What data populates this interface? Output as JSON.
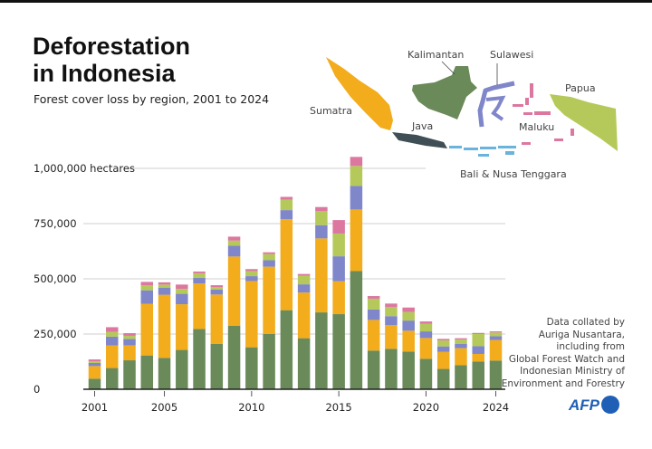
{
  "title_line1": "Deforestation",
  "title_line2": "in Indonesia",
  "subtitle": "Forest cover loss by region, 2001 to 2024",
  "source": "Data collated by\nAuriga Nusantara,\nincluding from\nGlobal Forest Watch and\nIndonesian Ministry of\nEnvironment  and Forestry",
  "logo": "AFP",
  "map_labels": {
    "kalimantan": "Kalimantan",
    "sulawesi": "Sulawesi",
    "papua": "Papua",
    "sumatra": "Sumatra",
    "java": "Java",
    "maluku": "Maluku",
    "bali": "Bali & Nusa Tenggara"
  },
  "colors": {
    "Kalimantan": "#6a8a5a",
    "Sumatra": "#f2ac1c",
    "Sulawesi": "#7f86c9",
    "Papua": "#b5c95a",
    "Maluku": "#dc78a0",
    "Java": "#3f4f55",
    "Bali & Nusa Tenggara": "#6ab3dc"
  },
  "chart_data": {
    "type": "bar",
    "stacked": true,
    "title": "Forest cover loss by region, 2001 to 2024",
    "ylabel": "hectares",
    "ylim": [
      0,
      1000000
    ],
    "yticks": [
      {
        "value": 0,
        "label": "0"
      },
      {
        "value": 250000,
        "label": "250,000"
      },
      {
        "value": 500000,
        "label": "500,000"
      },
      {
        "value": 750000,
        "label": "750,000"
      },
      {
        "value": 1000000,
        "label": "1,000,000 hectares"
      }
    ],
    "xticks": [
      "2001",
      "2005",
      "2010",
      "2015",
      "2020",
      "2024"
    ],
    "grid": true,
    "categories": [
      "2001",
      "2002",
      "2003",
      "2004",
      "2005",
      "2006",
      "2007",
      "2008",
      "2009",
      "2010",
      "2011",
      "2012",
      "2013",
      "2014",
      "2015",
      "2016",
      "2017",
      "2018",
      "2019",
      "2020",
      "2021",
      "2022",
      "2023",
      "2024"
    ],
    "series": [
      {
        "name": "Kalimantan",
        "values": [
          48000,
          96000,
          131000,
          153000,
          142000,
          178000,
          273000,
          205000,
          288000,
          190000,
          250000,
          358000,
          231000,
          348000,
          340000,
          535000,
          175000,
          183000,
          171000,
          138000,
          92000,
          109000,
          126000,
          130000
        ]
      },
      {
        "name": "Sumatra",
        "values": [
          57000,
          102000,
          68000,
          234000,
          286000,
          207000,
          206000,
          224000,
          313000,
          300000,
          305000,
          412000,
          207000,
          335000,
          149000,
          279000,
          139000,
          108000,
          94000,
          94000,
          77000,
          77000,
          34000,
          93000
        ]
      },
      {
        "name": "Sulawesi",
        "values": [
          14000,
          40000,
          29000,
          61000,
          31000,
          47000,
          26000,
          22000,
          49000,
          22000,
          29000,
          41000,
          37000,
          60000,
          113000,
          107000,
          47000,
          40000,
          46000,
          30000,
          25000,
          19000,
          35000,
          17000
        ]
      },
      {
        "name": "Papua",
        "values": [
          8000,
          22000,
          14000,
          22000,
          15000,
          22000,
          20000,
          12000,
          23000,
          23000,
          28000,
          47000,
          39000,
          63000,
          103000,
          90000,
          49000,
          42000,
          39000,
          34000,
          27000,
          20000,
          55000,
          17000
        ]
      },
      {
        "name": "Maluku",
        "values": [
          8000,
          21000,
          12000,
          16000,
          10000,
          20000,
          8000,
          8000,
          18000,
          9000,
          8000,
          13000,
          8000,
          19000,
          61000,
          41000,
          12000,
          15000,
          20000,
          11000,
          7000,
          6000,
          5000,
          5000
        ]
      }
    ]
  }
}
